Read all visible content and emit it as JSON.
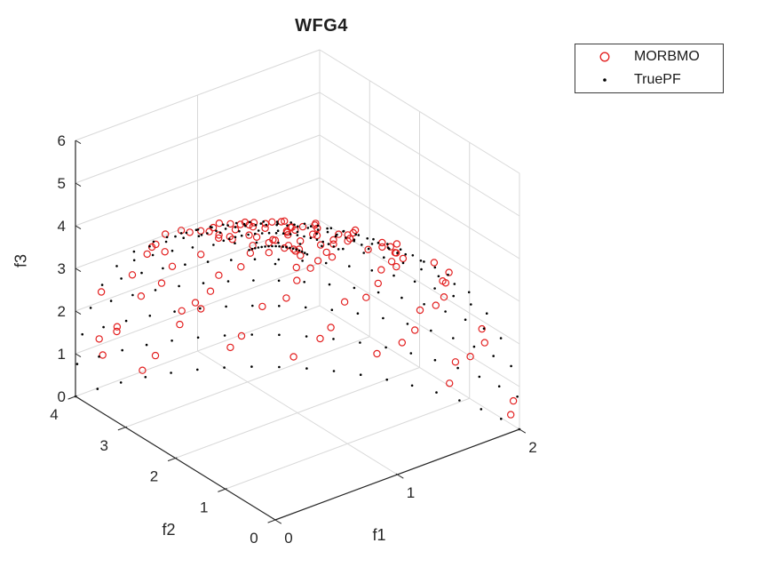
{
  "chart_data": {
    "type": "scatter3d",
    "title": "WFG4",
    "axes": {
      "x": {
        "label": "f1",
        "range": [
          0,
          2
        ],
        "ticks": [
          0,
          1,
          2
        ]
      },
      "y": {
        "label": "f2",
        "range": [
          0,
          4
        ],
        "ticks": [
          0,
          1,
          2,
          3,
          4
        ]
      },
      "z": {
        "label": "f3",
        "range": [
          0,
          6
        ],
        "ticks": [
          0,
          1,
          2,
          3,
          4,
          5,
          6
        ]
      }
    },
    "pareto_surface": {
      "equation": "(f1/2)^2 + (f2/4)^2 + (f3/6)^2 = 1",
      "radii": [
        2,
        4,
        6
      ],
      "octant": "f1>=0, f2>=0, f3>=0"
    },
    "series": [
      {
        "name": "MORBMO",
        "marker": "open-circle",
        "color": "#e32020",
        "marker_radius_px": 3.6,
        "marker_stroke_px": 1.2,
        "count": 126,
        "sampling": {
          "method": "golden-angle-quasirandom-on-surface",
          "u_mult": 0.6180339887,
          "u_off": 0.23,
          "v_mult": 0.7548776662,
          "v_off": 0.47,
          "t1_min": 0.05,
          "t1_span": 0.94,
          "radial_jitter": 0.012,
          "angle_jitter": 0.016
        }
      },
      {
        "name": "TruePF",
        "marker": "dot",
        "color": "#000000",
        "marker_radius_px": 1.3,
        "grid_rows": 13,
        "grid_cols": 19
      }
    ],
    "legend": {
      "position": "outside-top-right",
      "entries": [
        {
          "label": "MORBMO",
          "marker": "open-circle",
          "color": "#e32020"
        },
        {
          "label": "TruePF",
          "marker": "dot",
          "color": "#000000"
        }
      ]
    },
    "colors": {
      "grid": "#d9d9d9",
      "axis": "#262626",
      "text": "#262626",
      "background": "#ffffff"
    }
  }
}
